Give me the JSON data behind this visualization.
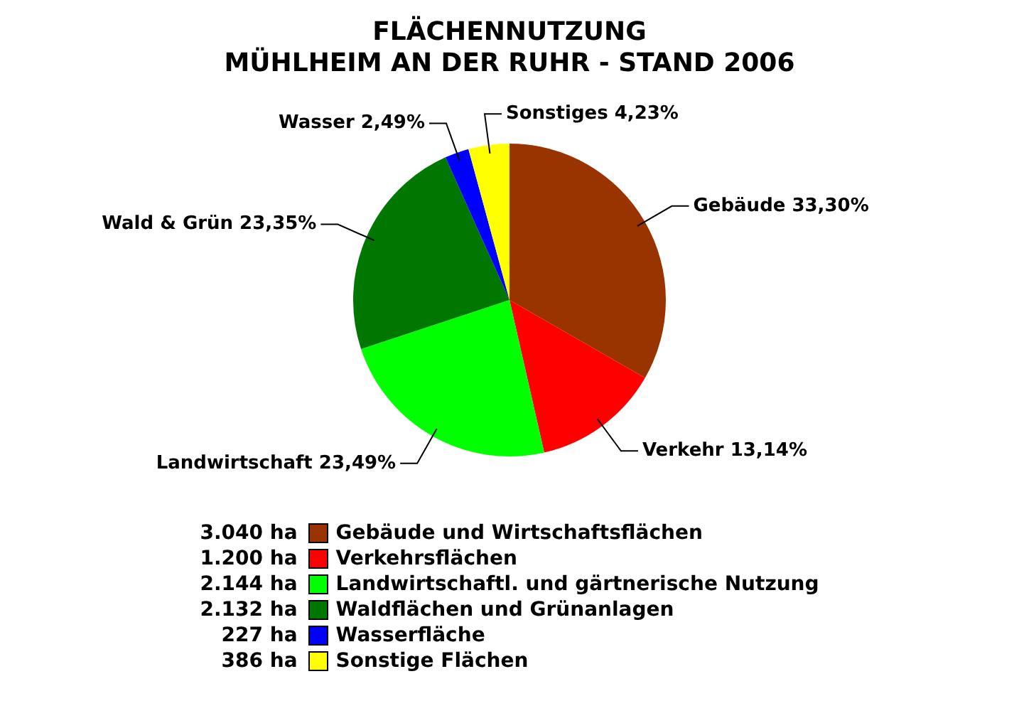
{
  "chart_data": {
    "type": "pie",
    "title": "FLÄCHENNUTZUNG",
    "subtitle": "MÜHLHEIM AN DER RUHR - STAND 2006",
    "categories": [
      "Gebäude und Wirtschaftsflächen",
      "Verkehrsflächen",
      "Landwirtschaftl. und gärtnerische Nutzung",
      "Waldflächen und Grünanlagen",
      "Wasserfläche",
      "Sonstige Flächen"
    ],
    "values": [
      33.3,
      13.14,
      23.49,
      23.35,
      2.49,
      4.23
    ],
    "colors": [
      "#993300",
      "#ff0000",
      "#00ff00",
      "#007700",
      "#0000ff",
      "#ffff00"
    ],
    "value_labels": [
      "Gebäude 33,30%",
      "Verkehr 13,14%",
      "Landwirtschaft 23,49%",
      "Wald & Grün 23,35%",
      "Wasser 2,49%",
      "Sonstiges 4,23%"
    ],
    "annotations": [
      "3.040 ha",
      "1.200 ha",
      "2.144 ha",
      "2.132 ha",
      "227 ha",
      "386 ha"
    ],
    "legend": "bottom"
  }
}
